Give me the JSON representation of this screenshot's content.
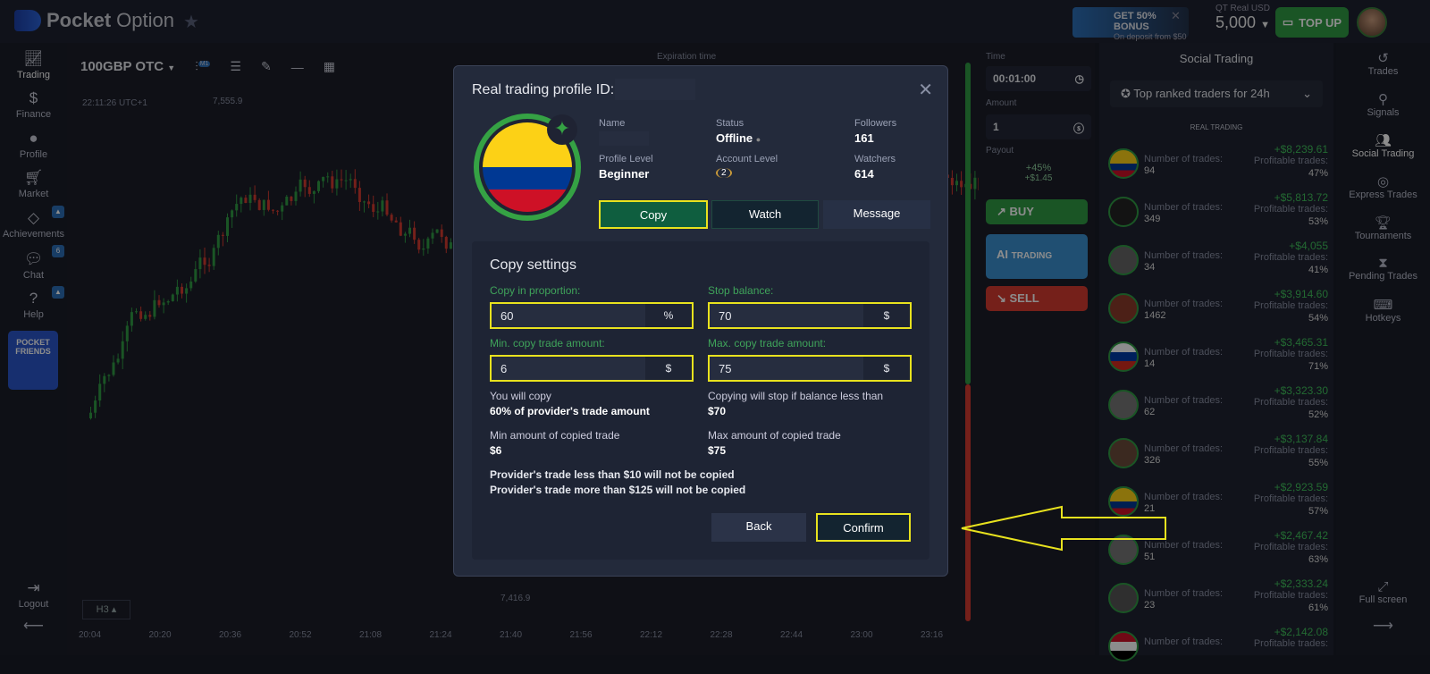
{
  "header": {
    "brand_bold": "Pocket",
    "brand_light": "Option",
    "bonus_title": "GET 50% BONUS",
    "bonus_sub": "On deposit from $50",
    "account_type": "QT Real  USD",
    "balance": "5,000",
    "topup": "TOP UP"
  },
  "left_nav": {
    "items": [
      {
        "label": "Trading",
        "icon": "chart-icon"
      },
      {
        "label": "Finance",
        "icon": "dollar-icon"
      },
      {
        "label": "Profile",
        "icon": "user-icon"
      },
      {
        "label": "Market",
        "icon": "cart-icon"
      },
      {
        "label": "Achievements",
        "icon": "diamond-icon"
      },
      {
        "label": "Chat",
        "icon": "chat-icon",
        "badge": "6"
      },
      {
        "label": "Help",
        "icon": "help-icon"
      }
    ],
    "promo": "POCKET FRIENDS",
    "logout": "Logout"
  },
  "chart": {
    "asset": "100GBP OTC",
    "timeframe_badge": "M1",
    "clock": "22:11:26 UTC+1",
    "price_top": "7,555.9",
    "price_bottom": "7,416.9",
    "expiration_label": "Expiration time",
    "timeframe": "H3",
    "x_ticks": [
      "20:04",
      "20:20",
      "20:36",
      "20:52",
      "21:08",
      "21:24",
      "21:40",
      "21:56",
      "22:12",
      "22:28",
      "22:44",
      "23:00",
      "23:16"
    ]
  },
  "trade_panel": {
    "time_label": "Time",
    "time": "00:01:00",
    "amount_label": "Amount",
    "amount": "1",
    "payout_label": "Payout",
    "payout_pct": "+45%",
    "payout_amt": "+$1.45",
    "buy": "BUY",
    "ai": "AI",
    "ai_trading": "TRADING",
    "sell": "SELL"
  },
  "social": {
    "title": "Social Trading",
    "filter": "Top ranked traders for 24h",
    "section": "REAL TRADING",
    "trades_label": "Number of trades:",
    "profit_label": "Profitable trades:",
    "traders": [
      {
        "profit": "+$8,239.61",
        "trades": "94",
        "pct": "47%"
      },
      {
        "profit": "+$5,813.72",
        "trades": "349",
        "pct": "53%"
      },
      {
        "profit": "+$4,055",
        "trades": "34",
        "pct": "41%"
      },
      {
        "profit": "+$3,914.60",
        "trades": "1462",
        "pct": "54%"
      },
      {
        "profit": "+$3,465.31",
        "trades": "14",
        "pct": "71%"
      },
      {
        "profit": "+$3,323.30",
        "trades": "62",
        "pct": "52%"
      },
      {
        "profit": "+$3,137.84",
        "trades": "326",
        "pct": "55%"
      },
      {
        "profit": "+$2,923.59",
        "trades": "21",
        "pct": "57%"
      },
      {
        "profit": "+$2,467.42",
        "trades": "51",
        "pct": "63%"
      },
      {
        "profit": "+$2,333.24",
        "trades": "23",
        "pct": "61%"
      },
      {
        "profit": "+$2,142.08",
        "trades": "",
        "pct": ""
      }
    ]
  },
  "right_nav": {
    "items": [
      "Trades",
      "Signals",
      "Social Trading",
      "Express Trades",
      "Tournaments",
      "Pending Trades",
      "Hotkeys"
    ],
    "fullscreen": "Full screen"
  },
  "modal": {
    "title": "Real trading profile ID:",
    "name_label": "Name",
    "status_label": "Status",
    "status": "Offline",
    "followers_label": "Followers",
    "followers": "161",
    "profile_level_label": "Profile Level",
    "profile_level": "Beginner",
    "account_level_label": "Account Level",
    "account_level": "2",
    "watchers_label": "Watchers",
    "watchers": "614",
    "copy": "Copy",
    "watch": "Watch",
    "message": "Message",
    "settings": {
      "title": "Copy settings",
      "proportion_label": "Copy in proportion:",
      "proportion": "60",
      "proportion_unit": "%",
      "stop_label": "Stop balance:",
      "stop": "70",
      "stop_unit": "$",
      "min_label": "Min. copy trade amount:",
      "min": "6",
      "min_unit": "$",
      "max_label": "Max. copy trade amount:",
      "max": "75",
      "max_unit": "$",
      "note1": "You will copy",
      "note1_val": "60% of provider's trade amount",
      "note2": "Copying will stop if balance less than",
      "note2_val": "$70",
      "note3": "Min amount of copied trade",
      "note3_val": "$6",
      "note4": "Max amount of copied trade",
      "note4_val": "$75",
      "warn1": "Provider's trade less than $10 will not be copied",
      "warn2": "Provider's trade more than $125 will not be copied",
      "back": "Back",
      "confirm": "Confirm"
    }
  },
  "colors": {
    "highlight": "#e8e21e",
    "green": "#35a244",
    "red": "#d43a30",
    "modal_bg": "#232a3b"
  }
}
